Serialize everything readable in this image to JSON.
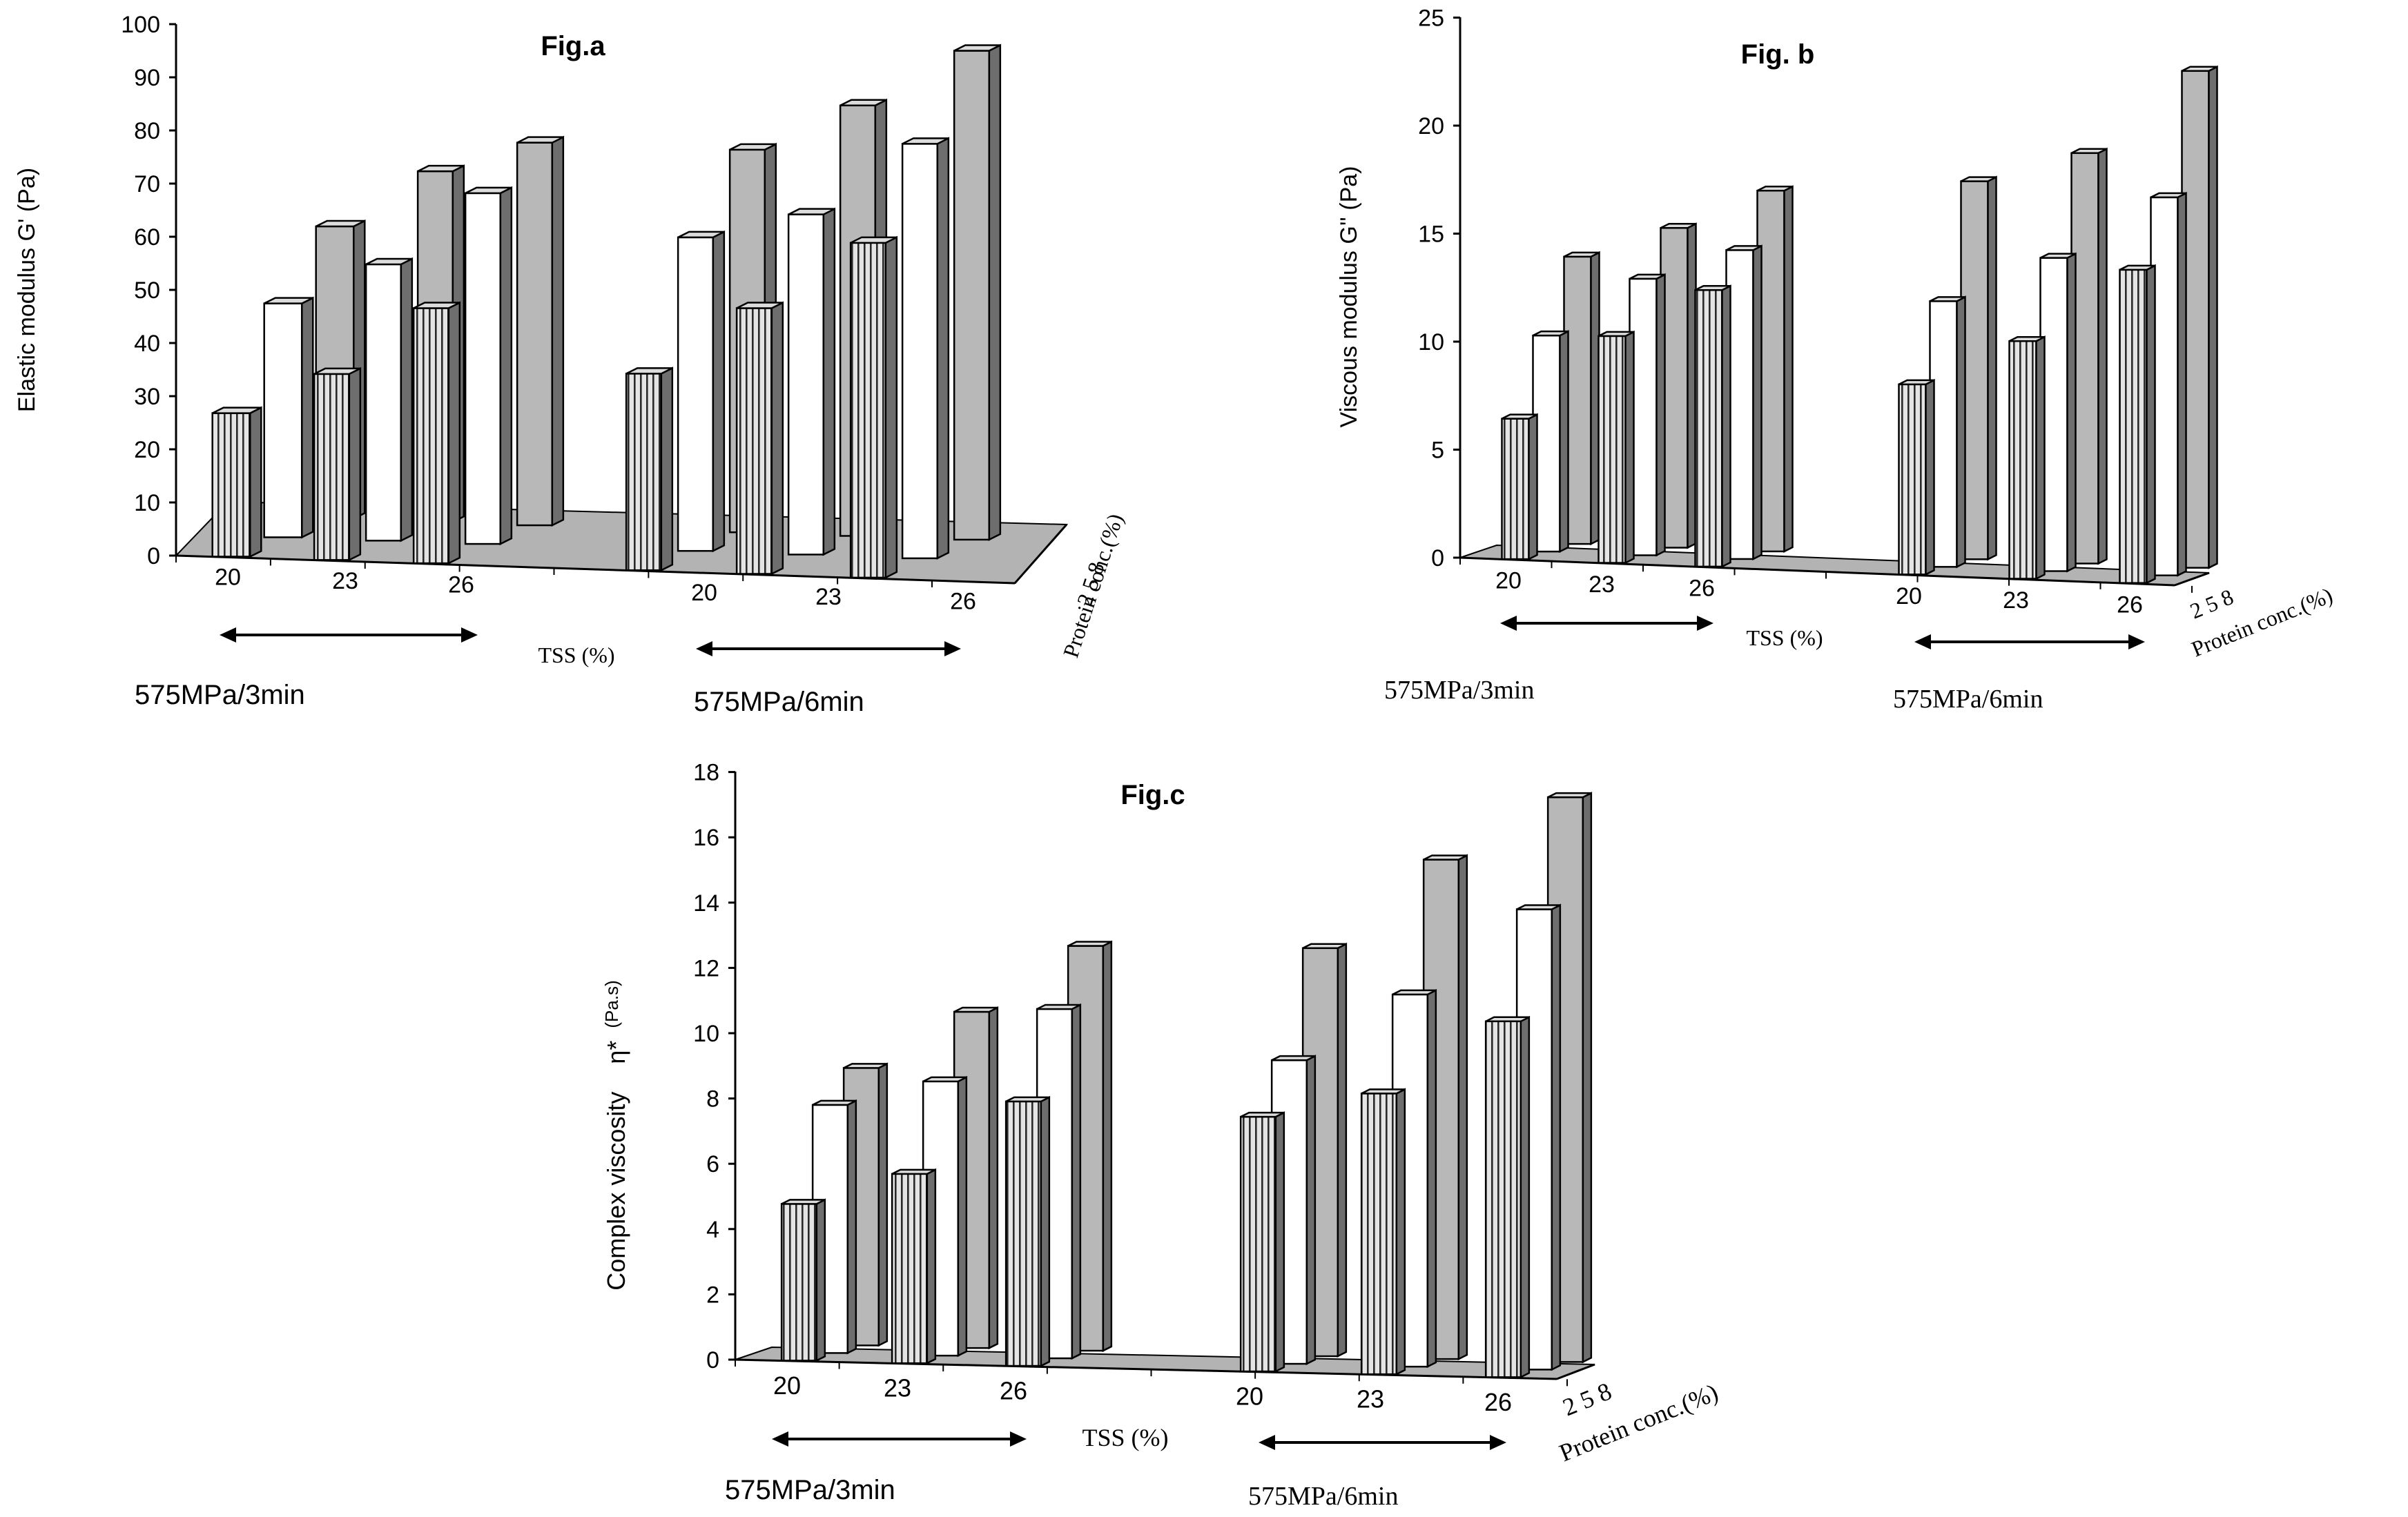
{
  "colors": {
    "floor": "#b3b3b3",
    "front_gray": "#b8b8b8",
    "stripe_bg": "#e4e4e4",
    "stripe_line": "#2a2a2a",
    "white_face": "#ffffff",
    "side": "#6e6e6e",
    "top": "#dcdcdc",
    "line": "#000000"
  },
  "chart_data": [
    {
      "id": "fig-a",
      "type": "bar",
      "style": "3d-grouped",
      "title": "Fig.a",
      "ylabel": "Elastic modulus G' (Pa)",
      "ylim": [
        0,
        100
      ],
      "yticks": [
        "0",
        "10",
        "20",
        "30",
        "40",
        "50",
        "60",
        "70",
        "80",
        "90",
        "100"
      ],
      "xlabel": "TSS (%)",
      "zlabel": "Protein conc.(%)",
      "categories": [
        "20",
        "23",
        "26",
        "20",
        "23",
        "26"
      ],
      "groups": [
        {
          "label": "575MPa/3min",
          "categories": [
            "20",
            "23",
            "26"
          ]
        },
        {
          "label": "575MPa/6min",
          "categories": [
            "20",
            "23",
            "26"
          ]
        }
      ],
      "series": [
        {
          "name": "2",
          "values": [
            27,
            35,
            48,
            37,
            50,
            63
          ]
        },
        {
          "name": "5",
          "values": [
            44,
            52,
            66,
            59,
            64,
            78
          ]
        },
        {
          "name": "8",
          "values": [
            55,
            66,
            72,
            72,
            81,
            92
          ]
        }
      ],
      "depth_ticks": "2 5 8",
      "grid": false
    },
    {
      "id": "fig-b",
      "type": "bar",
      "style": "3d-grouped",
      "title": "Fig. b",
      "ylabel": "Viscous modulus G'' (Pa)",
      "ylim": [
        0,
        25
      ],
      "yticks": [
        "0",
        "5",
        "10",
        "15",
        "20",
        "25"
      ],
      "xlabel": "TSS (%)",
      "zlabel": "Protein conc.(%)",
      "categories": [
        "20",
        "23",
        "26",
        "20",
        "23",
        "26"
      ],
      "groups": [
        {
          "label": "575MPa/3min",
          "categories": [
            "20",
            "23",
            "26"
          ]
        },
        {
          "label": "575MPa/6min",
          "categories": [
            "20",
            "23",
            "26"
          ]
        }
      ],
      "series": [
        {
          "name": "2",
          "values": [
            6.5,
            10.5,
            12.8,
            8.8,
            11.0,
            14.5
          ]
        },
        {
          "name": "5",
          "values": [
            10.0,
            12.8,
            14.3,
            12.3,
            14.5,
            17.5
          ]
        },
        {
          "name": "8",
          "values": [
            13.3,
            14.8,
            16.7,
            17.5,
            19.0,
            23.0
          ]
        }
      ],
      "depth_ticks": "2 5 8",
      "grid": false
    },
    {
      "id": "fig-c",
      "type": "bar",
      "style": "3d-grouped",
      "title": "Fig.c",
      "ylabel": "Complex viscosity",
      "ylabel_symbol": "η*",
      "ylabel_unit": "(Pa.s)",
      "ylim": [
        0,
        18
      ],
      "yticks": [
        "0",
        "2",
        "4",
        "6",
        "8",
        "10",
        "12",
        "14",
        "16",
        "18"
      ],
      "xlabel": "TSS (%)",
      "zlabel": "Protein conc.(%)",
      "categories": [
        "20",
        "23",
        "26",
        "20",
        "23",
        "26"
      ],
      "groups": [
        {
          "label": "575MPa/3min",
          "categories": [
            "20",
            "23",
            "26"
          ]
        },
        {
          "label": "575MPa/6min",
          "categories": [
            "20",
            "23",
            "26"
          ]
        }
      ],
      "series": [
        {
          "name": "2",
          "values": [
            4.8,
            5.8,
            8.1,
            7.8,
            8.6,
            10.9
          ]
        },
        {
          "name": "5",
          "values": [
            7.6,
            8.4,
            10.7,
            9.3,
            11.4,
            14.1
          ]
        },
        {
          "name": "8",
          "values": [
            8.5,
            10.3,
            12.4,
            12.5,
            15.3,
            17.3
          ]
        }
      ],
      "depth_ticks": "2 5 8",
      "grid": false
    }
  ]
}
